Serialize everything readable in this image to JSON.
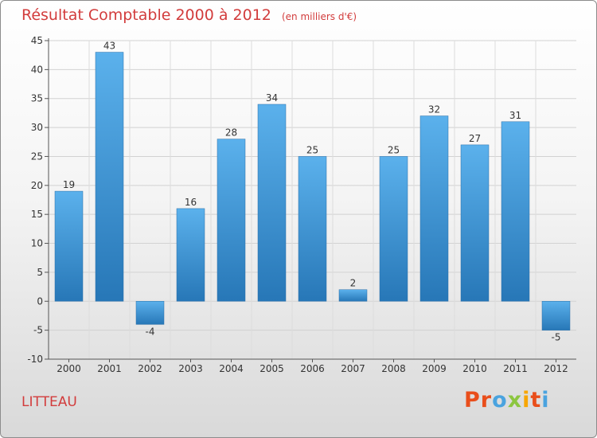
{
  "header": {
    "title": "Résultat Comptable 2000 à 2012",
    "subtitle": "(en milliers d'€)"
  },
  "footer": {
    "commune": "LITTEAU",
    "logo_text": "Proxiti",
    "logo_colors": [
      "#e94e1b",
      "#e94e1b",
      "#4aa3df",
      "#8cc63f",
      "#f7a600",
      "#e94e1b",
      "#4aa3df"
    ]
  },
  "chart_data": {
    "type": "bar",
    "title": "Résultat Comptable 2000 à 2012",
    "xlabel": "",
    "ylabel": "",
    "ylim": [
      -10,
      45
    ],
    "yticks": [
      -10,
      -5,
      0,
      5,
      10,
      15,
      20,
      25,
      30,
      35,
      40,
      45
    ],
    "grid": true,
    "categories": [
      "2000",
      "2001",
      "2002",
      "2003",
      "2004",
      "2005",
      "2006",
      "2007",
      "2008",
      "2009",
      "2010",
      "2011",
      "2012"
    ],
    "values": [
      19,
      43,
      -4,
      16,
      28,
      34,
      25,
      2,
      25,
      32,
      27,
      31,
      -5
    ],
    "bar_color": "#3d9ade"
  }
}
